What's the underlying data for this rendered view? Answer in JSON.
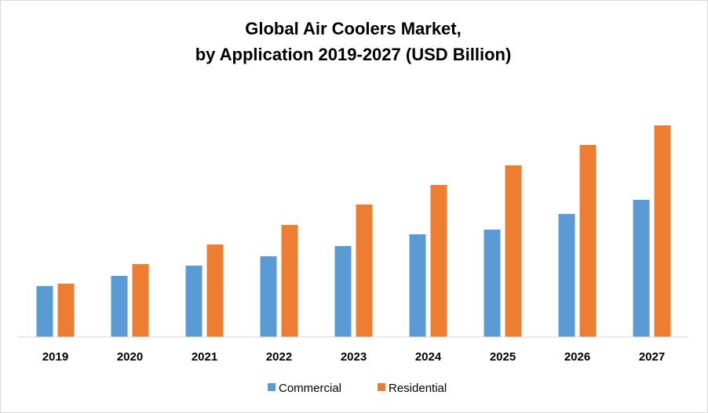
{
  "chart_data": {
    "type": "bar",
    "title_line1": "Global Air Coolers Market,",
    "title_line2": "by Application 2019-2027 (USD Billion)",
    "xlabel": "",
    "ylabel": "",
    "categories": [
      "2019",
      "2020",
      "2021",
      "2022",
      "2023",
      "2024",
      "2025",
      "2026",
      "2027"
    ],
    "series": [
      {
        "name": "Commercial",
        "color": "#5b9bd5",
        "values": [
          65,
          78,
          91,
          103,
          116,
          131,
          137,
          157,
          175
        ]
      },
      {
        "name": "Residential",
        "color": "#ed7d31",
        "values": [
          68,
          93,
          118,
          143,
          169,
          194,
          219,
          245,
          270
        ]
      }
    ],
    "ylim": [
      0,
      300
    ],
    "grid": false,
    "legend_position": "bottom"
  }
}
